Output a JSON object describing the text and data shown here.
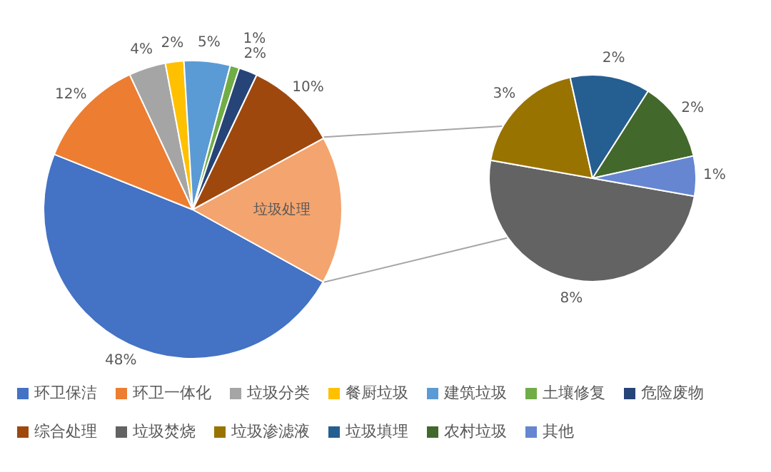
{
  "chart_data": [
    {
      "type": "pie",
      "categories": [
        "环卫保洁",
        "环卫一体化",
        "垃圾分类",
        "餐厨垃圾",
        "建筑垃圾",
        "土壤修复",
        "危险废物",
        "综合处理",
        null
      ],
      "values": [
        48,
        12,
        4,
        2,
        5,
        1,
        2,
        10,
        16
      ],
      "colors": [
        "#4472c4",
        "#ed7d31",
        "#a5a5a5",
        "#ffc000",
        "#5b9bd5",
        "#70ad47",
        "#264478",
        "#9e480e",
        "#f4a46e"
      ],
      "value_labels": [
        "48%",
        "12%",
        "4%",
        "2%",
        "5%",
        "1%",
        "2%",
        "10%",
        "垃圾处理"
      ],
      "legend": "bottom"
    },
    {
      "type": "pie",
      "categories": [
        "垃圾焚烧",
        "垃圾渗滤液",
        "垃圾填埋",
        "农村垃圾",
        "其他"
      ],
      "values": [
        8,
        3,
        2,
        2,
        1
      ],
      "colors": [
        "#636363",
        "#997300",
        "#255e91",
        "#43682b",
        "#6686d2"
      ],
      "value_labels": [
        "8%",
        "3%",
        "2%",
        "2%",
        "1%"
      ],
      "legend": "bottom"
    }
  ]
}
